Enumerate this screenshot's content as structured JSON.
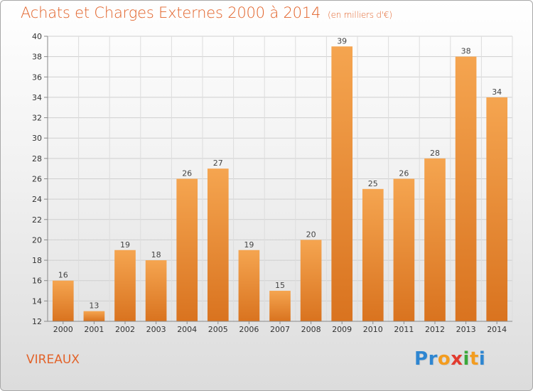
{
  "title": "Achats et Charges Externes 2000 à 2014",
  "subtitle": "(en milliers d'€)",
  "commune": "VIREAUX",
  "logo": {
    "letters": [
      "P",
      "r",
      "o",
      "x",
      "i",
      "t",
      "i"
    ],
    "colors": [
      "#2e86d1",
      "#2e86d1",
      "#f39c1f",
      "#e23b2f",
      "#3aa83a",
      "#f39c1f",
      "#2e86d1"
    ]
  },
  "colors": {
    "bar_light": "#f5a550",
    "bar_dark": "#d9731f",
    "text": "#e2632a"
  },
  "chart_data": {
    "type": "bar",
    "categories": [
      "2000",
      "2001",
      "2002",
      "2003",
      "2004",
      "2005",
      "2006",
      "2007",
      "2008",
      "2009",
      "2010",
      "2011",
      "2012",
      "2013",
      "2014"
    ],
    "values": [
      16,
      13,
      19,
      18,
      26,
      27,
      19,
      15,
      20,
      39,
      25,
      26,
      28,
      38,
      34
    ],
    "ylim": [
      12,
      40
    ],
    "yticks": [
      12,
      14,
      16,
      18,
      20,
      22,
      24,
      26,
      28,
      30,
      32,
      34,
      36,
      38,
      40
    ],
    "grid": true
  }
}
